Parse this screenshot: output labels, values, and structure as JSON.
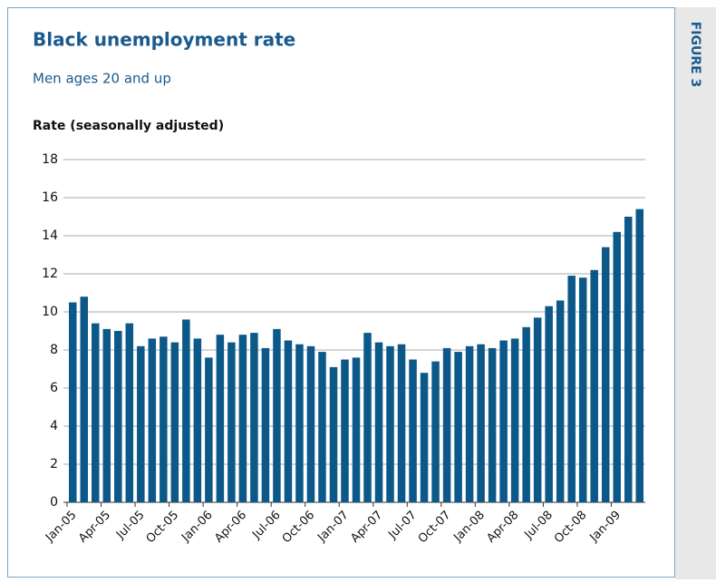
{
  "chart_data": {
    "type": "bar",
    "title": "Black unemployment rate",
    "subtitle": "Men ages 20 and up",
    "y_label": "Rate (seasonally adjusted)",
    "figure_label": "FIGURE 3",
    "color": "#0b5889",
    "categories": [
      "Jan-05",
      null,
      null,
      "Apr-05",
      null,
      null,
      "Jul-05",
      null,
      null,
      "Oct-05",
      null,
      null,
      "Jan-06",
      null,
      null,
      "Apr-06",
      null,
      null,
      "Jul-06",
      null,
      null,
      "Oct-06",
      null,
      null,
      "Jan-07",
      null,
      null,
      "Apr-07",
      null,
      null,
      "Jul-07",
      null,
      null,
      "Oct-07",
      null,
      null,
      "Jan-08",
      null,
      null,
      "Apr-08",
      null,
      null,
      "Jul-08",
      null,
      null,
      "Oct-08",
      null,
      null,
      "Jan-09",
      null,
      null
    ],
    "values": [
      10.5,
      10.8,
      9.4,
      9.1,
      9.0,
      9.4,
      8.2,
      8.6,
      8.7,
      8.4,
      9.6,
      8.6,
      7.6,
      8.8,
      8.4,
      8.8,
      8.9,
      8.1,
      9.1,
      8.5,
      8.3,
      8.2,
      7.9,
      7.1,
      7.5,
      7.6,
      8.9,
      8.4,
      8.2,
      8.3,
      7.5,
      6.8,
      7.4,
      8.1,
      7.9,
      8.2,
      8.3,
      8.1,
      8.5,
      8.6,
      9.2,
      9.7,
      10.3,
      10.6,
      11.9,
      11.8,
      12.2,
      13.4,
      14.2,
      15.0,
      15.4
    ],
    "ylim": [
      0,
      18
    ],
    "yticks": [
      0,
      2,
      4,
      6,
      8,
      10,
      12,
      14,
      16,
      18
    ],
    "grid": true
  }
}
